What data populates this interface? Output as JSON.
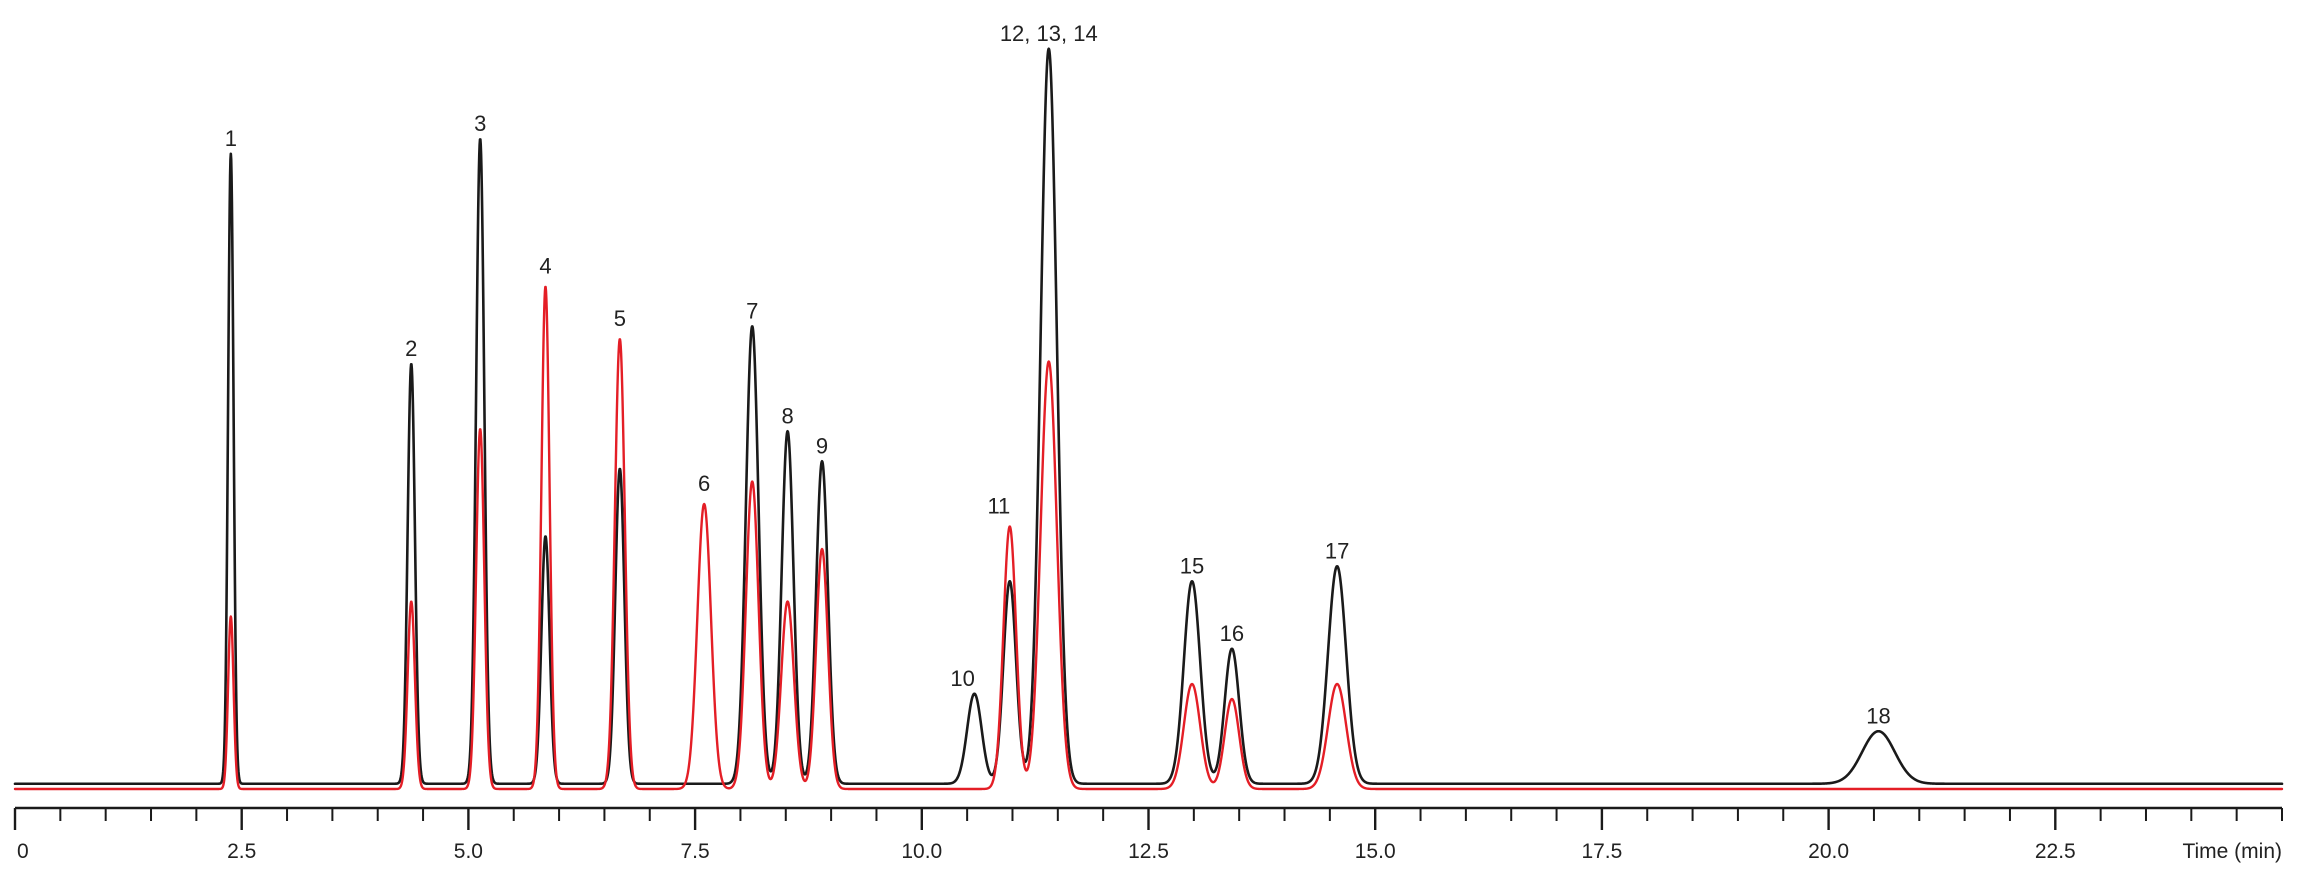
{
  "chart_data": {
    "type": "line",
    "title": "",
    "xlabel": "Time (min)",
    "ylabel": "",
    "xlim": [
      0,
      25
    ],
    "ylim": [
      0,
      100
    ],
    "grid": false,
    "legend": "none",
    "x_ticks": [
      {
        "value": 0,
        "label": "0"
      },
      {
        "value": 2.5,
        "label": "2.5"
      },
      {
        "value": 5,
        "label": "5.0"
      },
      {
        "value": 7.5,
        "label": "7.5"
      },
      {
        "value": 10,
        "label": "10.0"
      },
      {
        "value": 12.5,
        "label": "12.5"
      },
      {
        "value": 15,
        "label": "15.0"
      },
      {
        "value": 17.5,
        "label": "17.5"
      },
      {
        "value": 20,
        "label": "20.0"
      },
      {
        "value": 22.5,
        "label": "22.5"
      }
    ],
    "minor_tick_step": 0.5,
    "series": [
      {
        "color": "#1a1a1a",
        "baseline": 1.5,
        "peaks": [
          {
            "t": 2.38,
            "h": 84,
            "w": 0.03
          },
          {
            "t": 4.37,
            "h": 56,
            "w": 0.04
          },
          {
            "t": 5.13,
            "h": 86,
            "w": 0.045
          },
          {
            "t": 5.85,
            "h": 33,
            "w": 0.045
          },
          {
            "t": 6.67,
            "h": 42,
            "w": 0.05
          },
          {
            "t": 8.13,
            "h": 61,
            "w": 0.07
          },
          {
            "t": 8.52,
            "h": 47,
            "w": 0.065
          },
          {
            "t": 8.9,
            "h": 43,
            "w": 0.065
          },
          {
            "t": 10.58,
            "h": 12,
            "w": 0.08
          },
          {
            "t": 10.97,
            "h": 27,
            "w": 0.07
          },
          {
            "t": 11.4,
            "h": 98,
            "w": 0.09
          },
          {
            "t": 12.98,
            "h": 27,
            "w": 0.09
          },
          {
            "t": 13.42,
            "h": 18,
            "w": 0.08
          },
          {
            "t": 14.58,
            "h": 29,
            "w": 0.1
          },
          {
            "t": 20.55,
            "h": 7,
            "w": 0.18
          }
        ]
      },
      {
        "color": "#e41e26",
        "baseline": 0.8,
        "peaks": [
          {
            "t": 2.38,
            "h": 23,
            "w": 0.03
          },
          {
            "t": 4.37,
            "h": 25,
            "w": 0.04
          },
          {
            "t": 5.13,
            "h": 48,
            "w": 0.045
          },
          {
            "t": 5.85,
            "h": 67,
            "w": 0.045
          },
          {
            "t": 6.67,
            "h": 60,
            "w": 0.055
          },
          {
            "t": 7.6,
            "h": 38,
            "w": 0.075
          },
          {
            "t": 8.13,
            "h": 41,
            "w": 0.07
          },
          {
            "t": 8.52,
            "h": 25,
            "w": 0.07
          },
          {
            "t": 8.9,
            "h": 32,
            "w": 0.065
          },
          {
            "t": 10.97,
            "h": 35,
            "w": 0.07
          },
          {
            "t": 11.4,
            "h": 57,
            "w": 0.09
          },
          {
            "t": 12.98,
            "h": 14,
            "w": 0.09
          },
          {
            "t": 13.42,
            "h": 12,
            "w": 0.08
          },
          {
            "t": 14.58,
            "h": 14,
            "w": 0.1
          }
        ]
      }
    ],
    "annotations": [
      {
        "label": "1",
        "t": 2.38,
        "y": 86
      },
      {
        "label": "2",
        "t": 4.37,
        "y": 58
      },
      {
        "label": "3",
        "t": 5.13,
        "y": 88
      },
      {
        "label": "4",
        "t": 5.85,
        "y": 69
      },
      {
        "label": "5",
        "t": 6.67,
        "y": 62
      },
      {
        "label": "6",
        "t": 7.6,
        "y": 40
      },
      {
        "label": "7",
        "t": 8.13,
        "y": 63
      },
      {
        "label": "8",
        "t": 8.52,
        "y": 49
      },
      {
        "label": "9",
        "t": 8.9,
        "y": 45
      },
      {
        "label": "10",
        "t": 10.45,
        "y": 14
      },
      {
        "label": "11",
        "t": 10.85,
        "y": 37
      },
      {
        "label": "12, 13, 14",
        "t": 11.4,
        "y": 100
      },
      {
        "label": "15",
        "t": 12.98,
        "y": 29
      },
      {
        "label": "16",
        "t": 13.42,
        "y": 20
      },
      {
        "label": "17",
        "t": 14.58,
        "y": 31
      },
      {
        "label": "18",
        "t": 20.55,
        "y": 9
      }
    ]
  }
}
